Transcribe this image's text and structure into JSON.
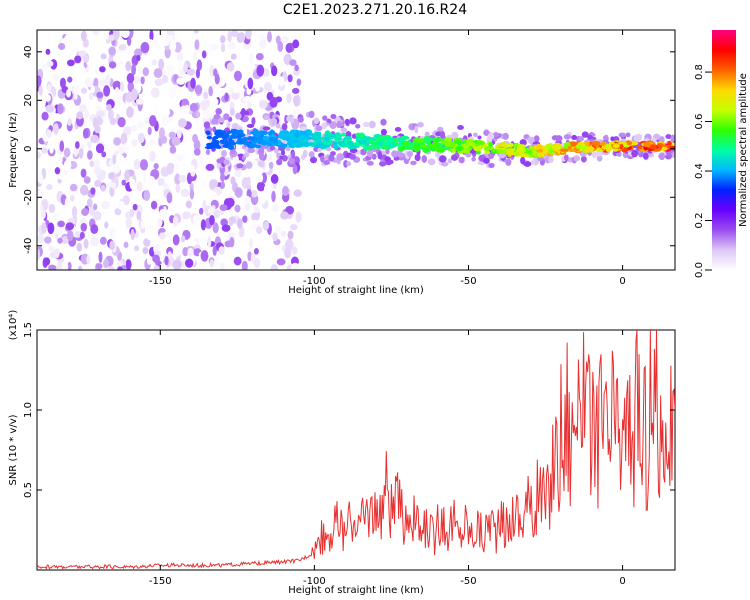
{
  "page": {
    "title": "C2E1.2023.271.20.16.R24"
  },
  "chart_data": [
    {
      "type": "heatmap",
      "title": "C2E1.2023.271.20.16.R24",
      "xlabel": "Height of straight line (km)",
      "ylabel": "Frequency (Hz)",
      "xlim": [
        -190,
        17
      ],
      "ylim": [
        -50,
        49
      ],
      "x_ticks": [
        -150,
        -100,
        -50,
        0
      ],
      "x_tick_labels": [
        "-150",
        "-100",
        "-50",
        "0"
      ],
      "y_ticks": [
        -40,
        -20,
        0,
        20,
        40
      ],
      "y_tick_labels": [
        "-40",
        "-20",
        "0",
        "20",
        "40"
      ],
      "colorbar": {
        "label": "Normalized spectral amplitude",
        "range": [
          0,
          0.97
        ],
        "ticks": [
          0.0,
          0.2,
          0.4,
          0.6,
          0.8
        ],
        "tick_labels": [
          "0.0",
          "0.2",
          "0.4",
          "0.6",
          "0.8"
        ],
        "colors": [
          "#ffffff",
          "#ddc8f6",
          "#9a4cf0",
          "#6a00ff",
          "#0020ff",
          "#00b8ff",
          "#00ffa0",
          "#30ff00",
          "#c8ff00",
          "#ffd800",
          "#ff6000",
          "#ff0000",
          "#ff0080"
        ]
      },
      "description_free": true,
      "bands": [
        {
          "name": "noise",
          "x_range": [
            -190,
            -105
          ],
          "y_range": [
            -50,
            49
          ],
          "level": 0.18
        },
        {
          "name": "signal",
          "x_range": [
            -135,
            17
          ],
          "center_hz": [
            [
              -135,
              4
            ],
            [
              -100,
              4
            ],
            [
              -50,
              1
            ],
            [
              -30,
              -1
            ],
            [
              -10,
              1
            ],
            [
              17,
              1
            ]
          ],
          "level_start": 0.35,
          "level_end": 0.97
        }
      ]
    },
    {
      "type": "line",
      "xlabel": "Height of straight line (km)",
      "ylabel": "SNR (10 * v/v)",
      "multiplier_label": "(x10⁴)",
      "xlim": [
        -190,
        17
      ],
      "ylim": [
        0,
        1.5
      ],
      "x_ticks": [
        -150,
        -100,
        -50,
        0
      ],
      "x_tick_labels": [
        "-150",
        "-100",
        "-50",
        "0"
      ],
      "y_ticks": [
        0.5,
        1.0,
        1.5
      ],
      "y_tick_labels": [
        "0.5",
        "1.0",
        "1.5"
      ],
      "color": "#e83030",
      "series": [
        {
          "x": [
            -190,
            -180,
            -170,
            -160,
            -150,
            -140,
            -130,
            -120,
            -110,
            -105,
            -101,
            -98,
            -95,
            -92,
            -90,
            -87,
            -85,
            -82,
            -80,
            -78,
            -76,
            -75,
            -73,
            -71,
            -69,
            -67,
            -65,
            -63,
            -61,
            -59,
            -57,
            -55,
            -53,
            -51,
            -49,
            -47,
            -45,
            -43,
            -41,
            -39,
            -37,
            -35,
            -33,
            -31,
            -29,
            -27,
            -25,
            -23,
            -22,
            -21,
            -20,
            -19,
            -18,
            -17,
            -16,
            -15,
            -14,
            -13,
            -12,
            -11,
            -10,
            -9,
            -8,
            -7,
            -6,
            -5,
            -4,
            -3,
            -2,
            -1,
            0,
            1,
            2,
            3,
            4,
            5,
            6,
            7,
            8,
            9,
            10,
            11,
            12,
            13,
            14,
            15,
            16,
            17
          ],
          "y": [
            0.02,
            0.02,
            0.02,
            0.02,
            0.03,
            0.03,
            0.03,
            0.04,
            0.05,
            0.06,
            0.1,
            0.2,
            0.25,
            0.3,
            0.22,
            0.35,
            0.28,
            0.4,
            0.3,
            0.45,
            0.55,
            0.38,
            0.4,
            0.3,
            0.35,
            0.28,
            0.22,
            0.3,
            0.18,
            0.35,
            0.25,
            0.32,
            0.2,
            0.3,
            0.22,
            0.28,
            0.2,
            0.35,
            0.22,
            0.3,
            0.25,
            0.4,
            0.28,
            0.45,
            0.3,
            0.52,
            0.4,
            0.55,
            0.85,
            0.6,
            0.9,
            0.7,
            1.05,
            0.75,
            0.95,
            1.25,
            0.7,
            1.48,
            0.8,
            0.95,
            0.7,
            1.1,
            0.85,
            1.0,
            0.78,
            0.92,
            0.75,
            1.05,
            0.8,
            0.9,
            0.72,
            0.95,
            0.85,
            1.0,
            0.8,
            1.3,
            0.6,
            0.95,
            0.7,
            1.2,
            0.75,
            1.4,
            0.55,
            1.25,
            0.7,
            0.95,
            0.8,
            1.0
          ]
        }
      ]
    }
  ]
}
